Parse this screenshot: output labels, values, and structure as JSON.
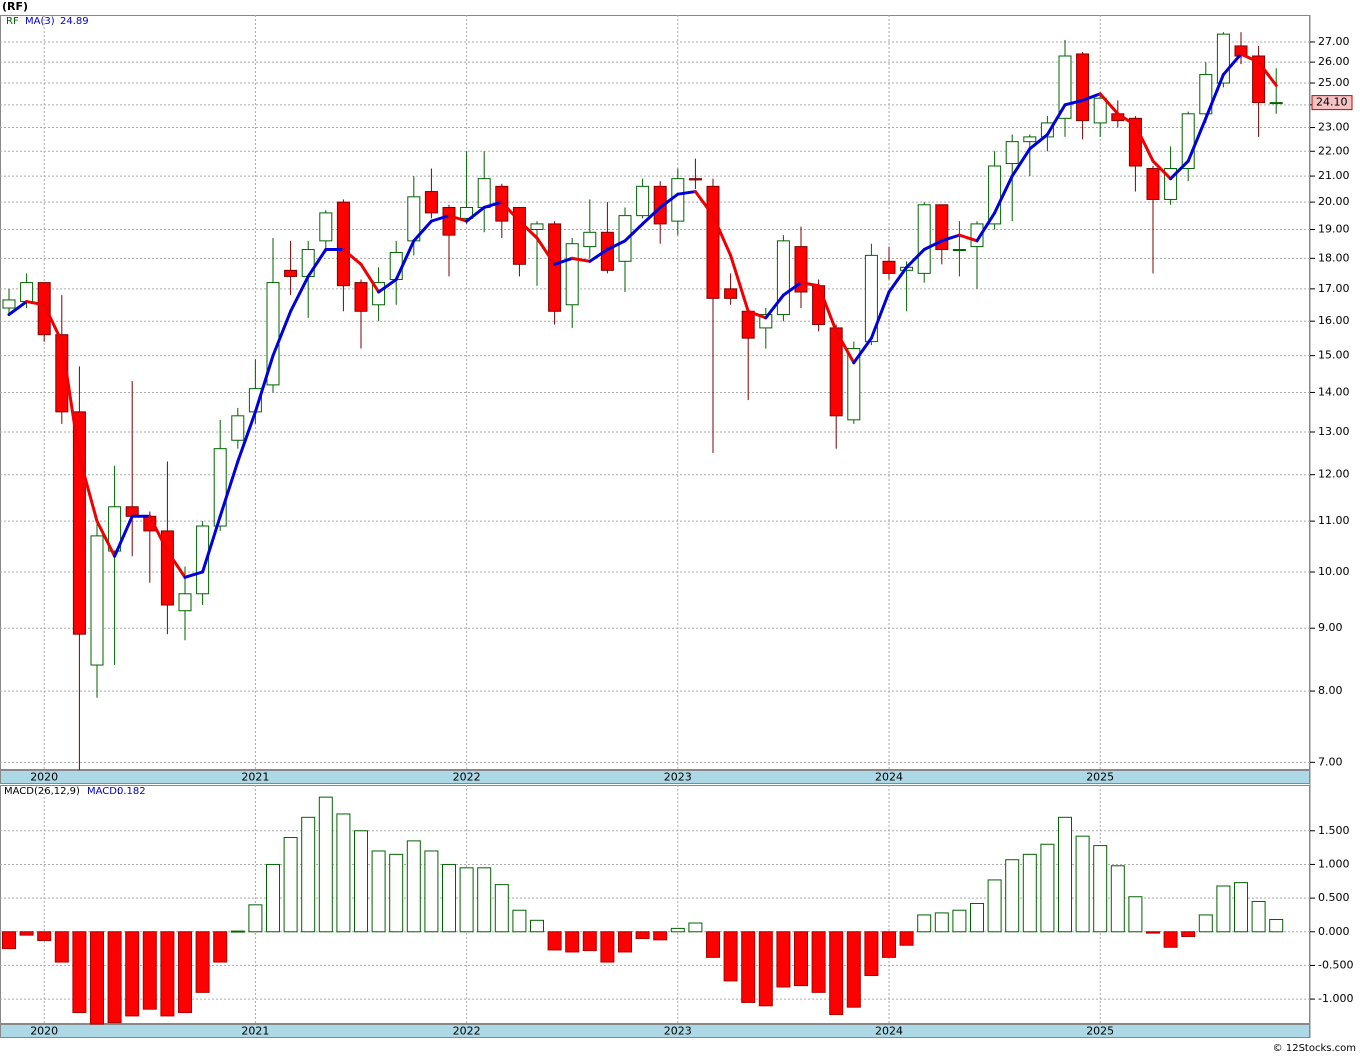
{
  "page_title": "(RF)",
  "copyright": "© 12Stocks.com",
  "chart_data": [
    {
      "type": "candlestick",
      "ticker": "RF",
      "log_y": true,
      "grid": true,
      "up_color": "#006400",
      "down_color": "#ff0000",
      "categories": [
        null,
        null,
        "2020",
        null,
        null,
        null,
        null,
        null,
        null,
        null,
        null,
        null,
        null,
        null,
        "2021",
        null,
        null,
        null,
        null,
        null,
        null,
        null,
        null,
        null,
        null,
        null,
        "2022",
        null,
        null,
        null,
        null,
        null,
        null,
        null,
        null,
        null,
        null,
        null,
        "2023",
        null,
        null,
        null,
        null,
        null,
        null,
        null,
        null,
        null,
        null,
        null,
        "2024",
        null,
        null,
        null,
        null,
        null,
        null,
        null,
        null,
        null,
        null,
        null,
        "2025",
        null,
        null,
        null,
        null,
        null,
        null,
        null,
        null,
        null,
        null
      ],
      "ohlc": {
        "open": [
          16.4,
          16.6,
          17.2,
          15.6,
          13.5,
          8.4,
          10.4,
          11.3,
          11.1,
          10.8,
          9.3,
          9.6,
          10.9,
          12.8,
          13.5,
          14.2,
          17.6,
          17.4,
          18.6,
          20.0,
          17.2,
          16.5,
          17.3,
          18.6,
          20.4,
          19.8,
          19.4,
          19.8,
          20.6,
          19.8,
          19.0,
          19.2,
          16.5,
          18.4,
          18.9,
          17.9,
          19.5,
          20.6,
          19.3,
          20.9,
          20.6,
          17.0,
          16.3,
          15.8,
          16.2,
          18.4,
          17.1,
          15.8,
          13.3,
          15.4,
          17.9,
          17.6,
          17.5,
          19.9,
          18.3,
          18.4,
          19.2,
          21.5,
          22.4,
          22.6,
          23.4,
          26.4,
          23.2,
          23.6,
          23.4,
          21.3,
          20.1,
          21.3,
          23.6,
          25.0,
          26.8,
          26.3,
          24.1
        ],
        "high": [
          17.0,
          17.5,
          17.2,
          16.8,
          14.7,
          11.1,
          12.2,
          14.3,
          11.2,
          12.3,
          10.1,
          11.0,
          13.3,
          13.6,
          14.9,
          18.7,
          18.6,
          18.6,
          19.7,
          20.1,
          17.3,
          17.7,
          18.6,
          21.0,
          21.3,
          19.9,
          22.0,
          22.0,
          20.7,
          19.8,
          19.3,
          19.3,
          18.7,
          20.1,
          20.0,
          19.8,
          20.9,
          20.8,
          21.3,
          21.7,
          20.9,
          17.5,
          16.4,
          16.4,
          18.8,
          19.1,
          17.3,
          15.9,
          15.4,
          18.5,
          18.4,
          17.9,
          20.0,
          19.9,
          19.3,
          19.3,
          22.0,
          22.7,
          22.7,
          23.5,
          27.1,
          26.5,
          24.4,
          24.2,
          23.5,
          21.4,
          22.2,
          23.7,
          26.0,
          27.5,
          27.5,
          26.8,
          25.7
        ],
        "low": [
          16.2,
          16.4,
          15.4,
          13.2,
          6.9,
          7.9,
          8.4,
          10.3,
          9.8,
          8.9,
          8.8,
          9.4,
          10.8,
          12.6,
          13.2,
          14.0,
          16.8,
          16.1,
          18.2,
          16.3,
          15.2,
          16.0,
          16.5,
          18.1,
          19.4,
          17.4,
          19.2,
          18.9,
          18.7,
          17.4,
          17.1,
          15.9,
          15.8,
          18.0,
          17.5,
          16.9,
          19.4,
          18.5,
          18.8,
          20.5,
          12.5,
          16.5,
          13.8,
          15.2,
          16.0,
          16.4,
          15.7,
          12.6,
          13.2,
          15.3,
          17.3,
          16.3,
          17.2,
          17.8,
          17.4,
          17.0,
          19.0,
          19.3,
          21.0,
          22.0,
          22.6,
          22.5,
          22.6,
          23.0,
          20.4,
          17.5,
          19.9,
          20.8,
          23.2,
          24.8,
          25.9,
          22.6,
          23.6
        ],
        "close": [
          16.65,
          17.2,
          15.6,
          13.5,
          8.9,
          10.7,
          11.3,
          11.1,
          10.8,
          9.4,
          9.6,
          10.9,
          12.6,
          13.4,
          14.1,
          17.2,
          17.4,
          18.3,
          19.6,
          17.1,
          16.3,
          17.2,
          18.2,
          20.2,
          19.6,
          18.8,
          19.8,
          20.9,
          19.3,
          17.8,
          19.2,
          16.3,
          18.5,
          18.9,
          17.6,
          19.5,
          20.6,
          19.2,
          20.9,
          20.85,
          16.7,
          16.7,
          15.5,
          16.2,
          18.6,
          16.9,
          15.9,
          13.4,
          15.2,
          18.1,
          17.5,
          17.7,
          19.9,
          18.3,
          18.3,
          19.2,
          21.4,
          22.4,
          22.6,
          23.2,
          26.3,
          23.3,
          24.3,
          23.3,
          21.4,
          20.1,
          21.3,
          23.6,
          25.4,
          27.4,
          26.3,
          24.1,
          24.1
        ],
        "close_label": "24.10"
      },
      "ma": {
        "name": "MA(3)",
        "up_color": "#0000dd",
        "down_color": "#ee0000",
        "values": [
          16.2,
          16.6,
          16.5,
          15.4,
          12.4,
          11.0,
          10.3,
          11.1,
          11.1,
          10.4,
          9.9,
          10.0,
          11.1,
          12.3,
          13.5,
          15.0,
          16.3,
          17.4,
          18.3,
          18.3,
          17.8,
          16.9,
          17.3,
          18.6,
          19.3,
          19.5,
          19.3,
          19.8,
          20.0,
          19.3,
          18.7,
          17.8,
          18.0,
          17.9,
          18.3,
          18.6,
          19.2,
          19.8,
          20.3,
          20.4,
          19.5,
          18.1,
          16.3,
          16.1,
          16.8,
          17.2,
          17.1,
          15.7,
          14.8,
          15.5,
          16.9,
          17.7,
          18.3,
          18.6,
          18.8,
          18.6,
          19.6,
          21.0,
          22.1,
          22.7,
          24.0,
          24.2,
          24.5,
          23.6,
          23.1,
          21.6,
          20.9,
          21.6,
          23.4,
          25.4,
          26.4,
          26.0,
          24.89
        ]
      },
      "ylim": [
        6.9,
        28.4
      ],
      "yticks": [
        {
          "value": 7,
          "label": "7.00"
        },
        {
          "value": 8,
          "label": "8.00"
        },
        {
          "value": 9,
          "label": "9.00"
        },
        {
          "value": 10,
          "label": "10.00"
        },
        {
          "value": 11,
          "label": "11.00"
        },
        {
          "value": 12,
          "label": "12.00"
        },
        {
          "value": 13,
          "label": "13.00"
        },
        {
          "value": 14,
          "label": "14.00"
        },
        {
          "value": 15,
          "label": "15.00"
        },
        {
          "value": 16,
          "label": "16.00"
        },
        {
          "value": 17,
          "label": "17.00"
        },
        {
          "value": 18,
          "label": "18.00"
        },
        {
          "value": 19,
          "label": "19.00"
        },
        {
          "value": 20,
          "label": "20.00"
        },
        {
          "value": 21,
          "label": "21.00"
        },
        {
          "value": 22,
          "label": "22.00"
        },
        {
          "value": 23,
          "label": "23.00"
        },
        {
          "value": 24,
          "label": "24.00"
        },
        {
          "value": 25,
          "label": "25.00"
        },
        {
          "value": 26,
          "label": "26.00"
        },
        {
          "value": 27,
          "label": "27.00"
        }
      ]
    },
    {
      "type": "histogram_bar",
      "indicator": "MACD(26,12,9)",
      "legend_label": "MACD:",
      "grid": true,
      "positive_color": "#006400",
      "negative_color": "#ff0000",
      "categories": [
        null,
        null,
        "2020",
        null,
        null,
        null,
        null,
        null,
        null,
        null,
        null,
        null,
        null,
        null,
        "2021",
        null,
        null,
        null,
        null,
        null,
        null,
        null,
        null,
        null,
        null,
        null,
        "2022",
        null,
        null,
        null,
        null,
        null,
        null,
        null,
        null,
        null,
        null,
        null,
        "2023",
        null,
        null,
        null,
        null,
        null,
        null,
        null,
        null,
        null,
        null,
        null,
        "2024",
        null,
        null,
        null,
        null,
        null,
        null,
        null,
        null,
        null,
        null,
        null,
        "2025",
        null,
        null,
        null,
        null,
        null,
        null,
        null,
        null,
        null,
        null
      ],
      "values": [
        -0.25,
        -0.05,
        -0.13,
        -0.45,
        -1.2,
        -1.37,
        -1.35,
        -1.25,
        -1.15,
        -1.25,
        -1.2,
        -0.9,
        -0.45,
        0.01,
        0.4,
        1.0,
        1.4,
        1.7,
        2.0,
        1.75,
        1.5,
        1.2,
        1.15,
        1.35,
        1.2,
        1.0,
        0.95,
        0.95,
        0.7,
        0.32,
        0.17,
        -0.27,
        -0.3,
        -0.28,
        -0.45,
        -0.3,
        -0.1,
        -0.12,
        0.05,
        0.13,
        -0.38,
        -0.73,
        -1.05,
        -1.1,
        -0.82,
        -0.8,
        -0.9,
        -1.23,
        -1.12,
        -0.65,
        -0.38,
        -0.2,
        0.25,
        0.28,
        0.32,
        0.42,
        0.77,
        1.07,
        1.15,
        1.3,
        1.7,
        1.42,
        1.28,
        0.98,
        0.52,
        -0.02,
        -0.23,
        -0.07,
        0.25,
        0.68,
        0.73,
        0.45,
        0.182
      ],
      "ylim": [
        -1.37,
        2.18
      ],
      "yticks": [
        {
          "value": -1,
          "label": "-1.000"
        },
        {
          "value": -0.5,
          "label": "-0.500"
        },
        {
          "value": 0,
          "label": "0.000"
        },
        {
          "value": 0.5,
          "label": "0.500"
        },
        {
          "value": 1,
          "label": "1.000"
        },
        {
          "value": 1.5,
          "label": "1.500"
        }
      ]
    }
  ]
}
